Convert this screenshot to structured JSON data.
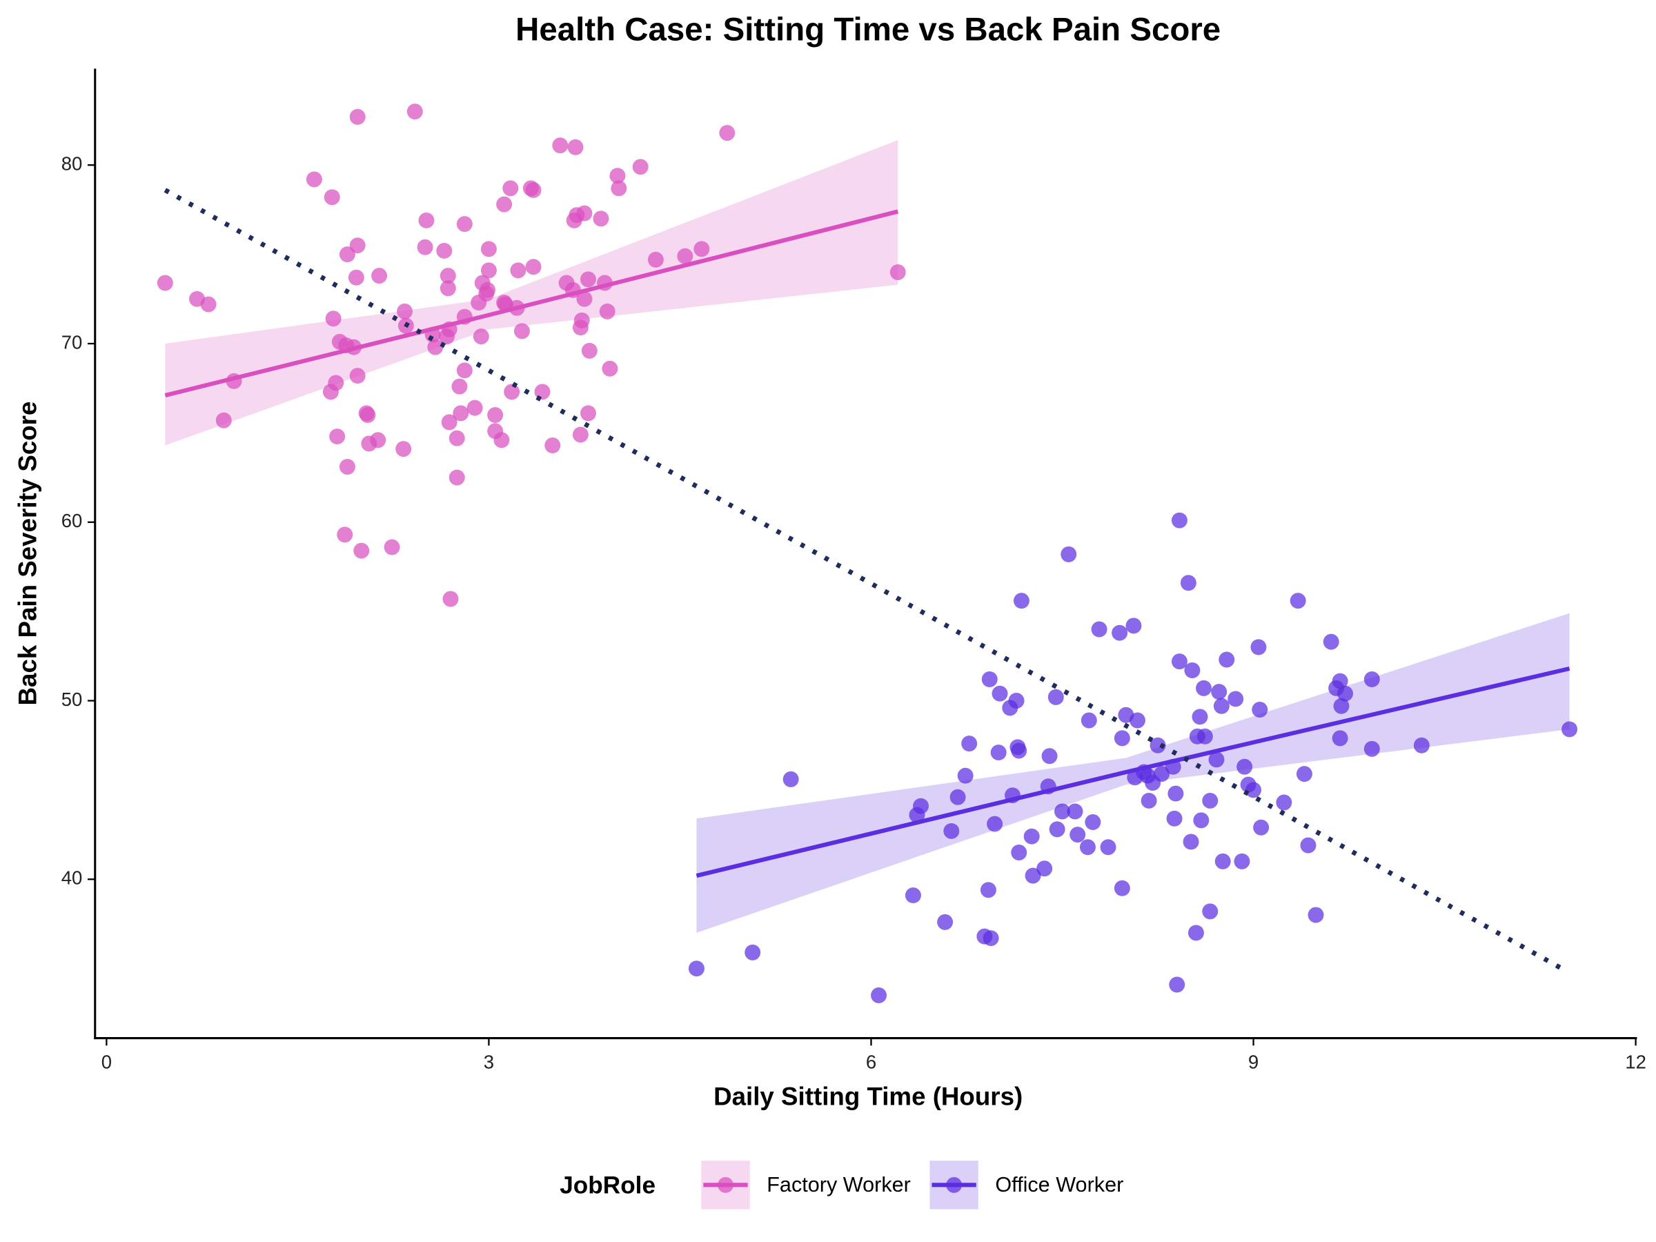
{
  "chart_data": {
    "type": "scatter",
    "title": "Health Case: Sitting Time vs Back Pain Score",
    "x_label": "Daily Sitting Time (Hours)",
    "y_label": "Back Pain Severity Score",
    "legend_title": "JobRole",
    "legend_position": "bottom",
    "xlim": [
      -0.09,
      12.01
    ],
    "ylim": [
      31.1,
      85.4
    ],
    "xticks": [
      0,
      3,
      6,
      9,
      12
    ],
    "yticks": [
      40,
      50,
      60,
      70,
      80
    ],
    "grid": false,
    "series": [
      {
        "name": "Factory Worker",
        "color": "#d94fbf",
        "x": [
          0.46,
          0.71,
          0.8,
          0.92,
          1.0,
          1.63,
          1.77,
          1.78,
          1.76,
          1.8,
          1.81,
          1.83,
          1.88,
          1.89,
          1.89,
          1.87,
          1.94,
          1.96,
          1.97,
          1.97,
          1.97,
          2.0,
          2.04,
          2.05,
          2.06,
          2.14,
          2.13,
          2.24,
          2.33,
          2.34,
          2.35,
          2.42,
          2.5,
          2.51,
          2.56,
          2.58,
          2.65,
          2.68,
          2.68,
          2.67,
          2.69,
          2.69,
          2.7,
          2.75,
          2.75,
          2.77,
          2.78,
          2.81,
          2.81,
          2.81,
          2.89,
          2.92,
          2.94,
          2.95,
          2.98,
          2.99,
          3.0,
          3.0,
          3.05,
          3.05,
          3.1,
          3.12,
          3.12,
          3.13,
          3.17,
          3.18,
          3.22,
          3.23,
          3.26,
          3.33,
          3.35,
          3.35,
          3.42,
          3.5,
          3.56,
          3.61,
          3.66,
          3.67,
          3.68,
          3.69,
          3.72,
          3.73,
          3.72,
          3.75,
          3.75,
          3.78,
          3.78,
          3.79,
          3.88,
          3.91,
          3.93,
          3.95,
          4.01,
          4.02,
          4.19,
          4.31,
          4.54,
          4.67,
          4.87,
          6.21
        ],
        "values": [
          73.4,
          72.5,
          72.2,
          65.7,
          67.9,
          79.2,
          78.2,
          71.4,
          67.3,
          67.8,
          64.8,
          70.1,
          69.9,
          75.0,
          63.1,
          59.3,
          69.8,
          73.7,
          75.5,
          82.7,
          68.2,
          58.4,
          66.1,
          66.0,
          64.4,
          73.8,
          64.6,
          58.6,
          64.1,
          71.8,
          71.0,
          83.0,
          75.4,
          76.9,
          70.5,
          69.8,
          75.2,
          73.8,
          73.1,
          70.4,
          70.8,
          65.6,
          55.7,
          64.7,
          62.5,
          67.6,
          66.1,
          68.5,
          71.5,
          76.7,
          66.4,
          72.3,
          70.4,
          73.4,
          72.8,
          73.0,
          74.1,
          75.3,
          66.0,
          65.1,
          64.6,
          77.8,
          72.3,
          72.2,
          78.7,
          67.3,
          72.0,
          74.1,
          70.7,
          78.7,
          78.6,
          74.3,
          67.3,
          64.3,
          81.1,
          73.4,
          73.0,
          76.9,
          81.0,
          77.2,
          70.9,
          71.3,
          64.9,
          72.5,
          77.3,
          73.6,
          66.1,
          69.6,
          77.0,
          73.4,
          71.8,
          68.6,
          79.4,
          78.7,
          79.9,
          74.7,
          74.9,
          75.3,
          81.8,
          74.0
        ],
        "fit": {
          "x": [
            0.46,
            3.0,
            6.21
          ],
          "values": [
            67.1,
            71.6,
            77.4
          ],
          "lower": [
            64.3,
            70.8,
            73.3
          ],
          "upper": [
            70.0,
            72.5,
            81.4
          ]
        }
      },
      {
        "name": "Office Worker",
        "color": "#5b2ee0",
        "x": [
          4.63,
          5.07,
          5.37,
          6.06,
          6.33,
          6.36,
          6.39,
          6.58,
          6.63,
          6.68,
          6.74,
          6.77,
          6.89,
          6.92,
          6.93,
          6.94,
          6.97,
          7.0,
          7.01,
          7.09,
          7.11,
          7.14,
          7.15,
          7.16,
          7.16,
          7.18,
          7.26,
          7.27,
          7.36,
          7.39,
          7.4,
          7.45,
          7.46,
          7.5,
          7.55,
          7.6,
          7.62,
          7.7,
          7.71,
          7.74,
          7.79,
          7.86,
          7.95,
          7.97,
          7.97,
          8.0,
          8.06,
          8.07,
          8.09,
          8.14,
          8.17,
          8.18,
          8.21,
          8.25,
          8.28,
          8.37,
          8.38,
          8.39,
          8.4,
          8.42,
          8.42,
          8.49,
          8.51,
          8.52,
          8.55,
          8.56,
          8.58,
          8.59,
          8.61,
          8.62,
          8.66,
          8.66,
          8.71,
          8.73,
          8.75,
          8.76,
          8.79,
          8.86,
          8.91,
          8.93,
          8.96,
          9.0,
          9.04,
          9.05,
          9.06,
          9.24,
          9.35,
          9.4,
          9.43,
          9.49,
          9.61,
          9.65,
          9.68,
          9.68,
          9.69,
          9.72,
          9.93,
          9.93,
          10.32,
          11.48
        ],
        "values": [
          35.0,
          35.9,
          45.6,
          33.5,
          39.1,
          43.6,
          44.1,
          37.6,
          42.7,
          44.6,
          45.8,
          47.6,
          36.8,
          39.4,
          51.2,
          36.7,
          43.1,
          47.1,
          50.4,
          49.6,
          44.7,
          50.0,
          47.4,
          47.2,
          41.5,
          55.6,
          42.4,
          40.2,
          40.6,
          45.2,
          46.9,
          50.2,
          42.8,
          43.8,
          58.2,
          43.8,
          42.5,
          41.8,
          48.9,
          43.2,
          54.0,
          41.8,
          53.8,
          39.5,
          47.9,
          49.2,
          54.2,
          45.7,
          48.9,
          46.0,
          45.8,
          44.4,
          45.4,
          47.5,
          45.9,
          46.3,
          43.4,
          44.8,
          34.1,
          52.2,
          60.1,
          56.6,
          42.1,
          51.7,
          37.0,
          48.0,
          49.1,
          43.3,
          50.7,
          48.0,
          38.2,
          44.4,
          46.7,
          50.5,
          49.7,
          41.0,
          52.3,
          50.1,
          41.0,
          46.3,
          45.3,
          45.0,
          53.0,
          49.5,
          42.9,
          44.3,
          55.6,
          45.9,
          41.9,
          38.0,
          53.3,
          50.7,
          47.9,
          51.1,
          49.7,
          50.4,
          51.2,
          47.3,
          47.5,
          48.4
        ],
        "fit": {
          "x": [
            4.63,
            8.0,
            11.48
          ],
          "values": [
            40.2,
            46.0,
            51.8
          ],
          "lower": [
            37.0,
            45.3,
            48.4
          ],
          "upper": [
            43.4,
            46.8,
            54.9
          ]
        }
      }
    ],
    "overall_trend": {
      "color": "#1f2d5c",
      "x": [
        0.46,
        11.42
      ],
      "values": [
        78.6,
        35.0
      ]
    }
  }
}
